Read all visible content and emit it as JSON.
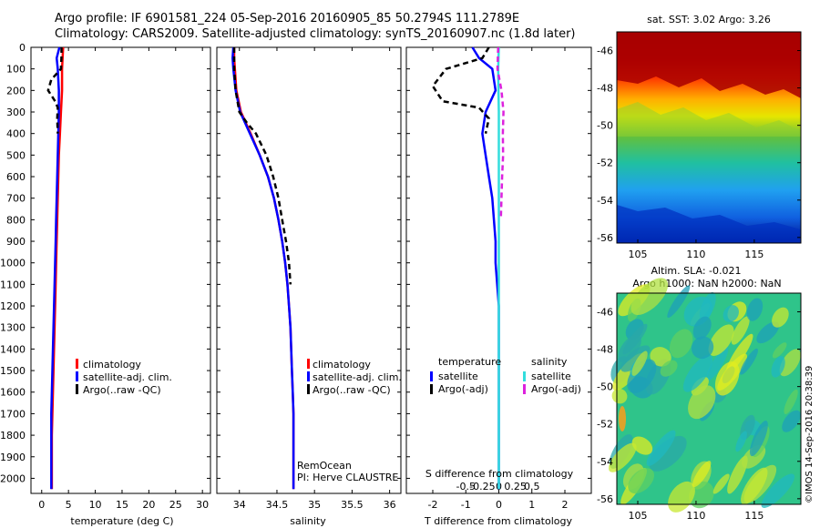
{
  "header": {
    "line1": "Argo profile: IF 6901581_224 05-Sep-2016 20160905_85 50.2794S 111.2789E",
    "line2": "Climatology: CARS2009. Satellite-adjusted climatology: synTS_20160907.nc (1.8d later)"
  },
  "colors": {
    "climatology": "#ff0000",
    "satellite": "#0000ff",
    "argo": "#000000",
    "satellite_salinity": "#33dddd",
    "argo_salinity": "#dd22dd"
  },
  "chart_data": [
    {
      "type": "line",
      "panel": "temperature",
      "xlabel": "temperature (deg C)",
      "xlim": [
        -2,
        31.5
      ],
      "xticks": [
        "0",
        "5",
        "10",
        "15",
        "20",
        "25",
        "30"
      ],
      "ylim": [
        0,
        2070
      ],
      "yticks": [
        "0",
        "100",
        "200",
        "300",
        "400",
        "500",
        "600",
        "700",
        "800",
        "900",
        "1000",
        "1100",
        "1200",
        "1300",
        "1400",
        "1500",
        "1600",
        "1700",
        "1800",
        "1900",
        "2000"
      ],
      "legend": [
        "climatology",
        "satellite-adj. clim.",
        "Argo(..raw -QC)"
      ],
      "series": [
        {
          "name": "climatology",
          "x": [
            4.0,
            3.9,
            3.8,
            3.8,
            3.6,
            3.4,
            3.2,
            3.1,
            3.0,
            2.9,
            2.8,
            2.7,
            2.6,
            2.5,
            2.4,
            2.3,
            2.2,
            2.1,
            2.0,
            1.9,
            1.9,
            1.9
          ],
          "y": [
            0,
            50,
            100,
            200,
            300,
            400,
            500,
            600,
            700,
            800,
            900,
            1000,
            1100,
            1200,
            1300,
            1400,
            1500,
            1600,
            1700,
            1800,
            1900,
            2050
          ]
        },
        {
          "name": "satellite-adj. clim.",
          "x": [
            3.3,
            2.8,
            3.0,
            3.2,
            3.2,
            3.1,
            3.0,
            2.9,
            2.8,
            2.7,
            2.6,
            2.5,
            2.4,
            2.3,
            2.2,
            2.1,
            2.0,
            1.9,
            1.8,
            1.8,
            1.8,
            1.8
          ],
          "y": [
            0,
            50,
            100,
            200,
            300,
            400,
            500,
            600,
            700,
            800,
            900,
            1000,
            1100,
            1200,
            1300,
            1400,
            1500,
            1600,
            1700,
            1800,
            1900,
            2050
          ]
        },
        {
          "name": "Argo(..raw -QC)",
          "x": [
            3.7,
            3.7,
            3.6,
            1.8,
            1.2,
            2.5,
            3.0,
            2.9,
            3.0
          ],
          "y": [
            0,
            40,
            100,
            150,
            200,
            250,
            280,
            330,
            400
          ]
        }
      ]
    },
    {
      "type": "line",
      "panel": "salinity",
      "xlabel": "salinity",
      "xlim": [
        33.7,
        36.15
      ],
      "xticks": [
        "34",
        "34.5",
        "35",
        "35.5",
        "36"
      ],
      "ylim": [
        0,
        2070
      ],
      "legend": [
        "climatology",
        "satellite-adj. clim.",
        "Argo(..raw -QC)"
      ],
      "annotations": [
        "RemOcean",
        "PI: Herve CLAUSTRE"
      ],
      "series": [
        {
          "name": "climatology",
          "x": [
            33.93,
            33.93,
            33.94,
            33.96,
            34.02,
            34.15,
            34.27,
            34.38,
            34.46,
            34.52,
            34.57,
            34.61,
            34.64,
            34.66,
            34.68,
            34.69,
            34.7,
            34.71,
            34.72,
            34.72,
            34.72,
            34.72
          ],
          "y": [
            0,
            50,
            100,
            200,
            300,
            400,
            500,
            600,
            700,
            800,
            900,
            1000,
            1100,
            1200,
            1300,
            1400,
            1500,
            1600,
            1700,
            1800,
            1900,
            2050
          ]
        },
        {
          "name": "satellite-adj. clim.",
          "x": [
            33.92,
            33.91,
            33.92,
            33.95,
            34.01,
            34.14,
            34.27,
            34.38,
            34.46,
            34.52,
            34.57,
            34.61,
            34.64,
            34.66,
            34.68,
            34.69,
            34.7,
            34.71,
            34.72,
            34.72,
            34.72,
            34.72
          ],
          "y": [
            0,
            50,
            100,
            200,
            300,
            400,
            500,
            600,
            700,
            800,
            900,
            1000,
            1100,
            1200,
            1300,
            1400,
            1500,
            1600,
            1700,
            1800,
            1900,
            2050
          ]
        },
        {
          "name": "Argo(..raw -QC)",
          "x": [
            33.93,
            33.93,
            33.95,
            34.0,
            34.1,
            34.22,
            34.36,
            34.45,
            34.52,
            34.57,
            34.62,
            34.66,
            34.68
          ],
          "y": [
            0,
            100,
            200,
            300,
            350,
            400,
            500,
            600,
            700,
            800,
            900,
            1000,
            1100
          ]
        }
      ]
    },
    {
      "type": "line",
      "panel": "difference",
      "xlabel": "T difference from climatology",
      "x2label": "S difference from climatology",
      "xlim": [
        -2.8,
        2.8
      ],
      "xticks": [
        "-2",
        "-1",
        "0",
        "1",
        "2"
      ],
      "x2ticks": [
        "-0.5",
        "-0.25",
        "0",
        "0.25",
        "0.5"
      ],
      "ylim": [
        0,
        2070
      ],
      "legend_titles": [
        "temperature",
        "salinity"
      ],
      "legend": [
        "satellite",
        "Argo(-adj)",
        "satellite",
        "Argo(-adj)"
      ],
      "series": [
        {
          "name": "temperature satellite",
          "x": [
            -0.8,
            -0.6,
            -0.2,
            -0.1,
            -0.4,
            -0.5,
            -0.4,
            -0.3,
            -0.2,
            -0.15,
            -0.1,
            -0.1,
            -0.05,
            0.0,
            0.0,
            0.0,
            0.0,
            0.0,
            0.0,
            0.0,
            0.0
          ],
          "y": [
            0,
            50,
            100,
            200,
            300,
            400,
            500,
            600,
            700,
            800,
            900,
            1000,
            1100,
            1200,
            1300,
            1400,
            1500,
            1600,
            1700,
            1800,
            2050
          ]
        },
        {
          "name": "temperature Argo(-adj)",
          "x": [
            -0.3,
            -0.5,
            -1.6,
            -2.0,
            -1.7,
            -0.6,
            -0.3,
            -0.4
          ],
          "y": [
            0,
            50,
            100,
            180,
            250,
            280,
            330,
            400
          ]
        },
        {
          "name": "salinity satellite",
          "x": [
            0.0,
            -0.02,
            -0.01,
            0.0,
            0.0,
            0.0,
            0.0,
            0.0,
            0.0,
            0.0
          ],
          "y": [
            0,
            100,
            200,
            300,
            500,
            800,
            1100,
            1400,
            1700,
            2050
          ]
        },
        {
          "name": "salinity Argo(-adj)",
          "x": [
            -0.02,
            -0.04,
            0.08,
            0.14,
            0.12,
            0.13,
            0.1,
            0.08,
            0.06
          ],
          "y": [
            0,
            100,
            200,
            300,
            400,
            500,
            600,
            700,
            800
          ]
        }
      ]
    },
    {
      "type": "heatmap",
      "panel": "SST map",
      "title": "sat. SST: 3.02 Argo: 3.26",
      "xticks": [
        "105",
        "110",
        "115"
      ],
      "yticks": [
        "-46",
        "-48",
        "-50",
        "-52",
        "-54",
        "-56"
      ]
    },
    {
      "type": "heatmap",
      "panel": "SLA map",
      "title_lines": [
        "Altim. SLA: -0.021",
        "Argo h1000: NaN h2000: NaN"
      ],
      "xticks": [
        "105",
        "110",
        "115"
      ],
      "yticks": [
        "-46",
        "-48",
        "-50",
        "-52",
        "-54",
        "-56"
      ]
    }
  ],
  "watermark": "©IMOS 14-Sep-2016 20:38:39"
}
